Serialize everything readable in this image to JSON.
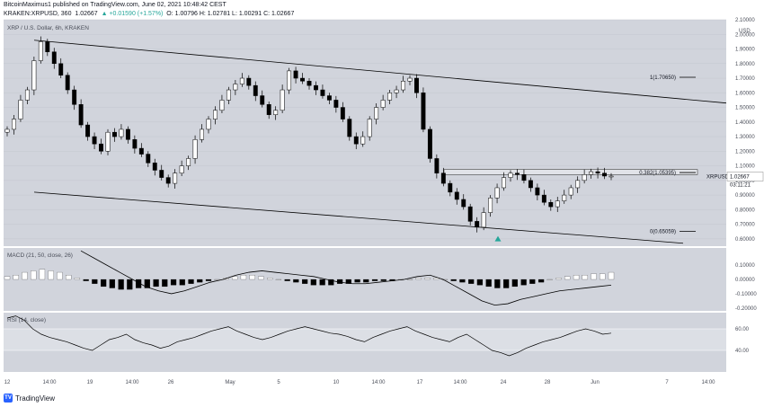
{
  "header": {
    "line1": "BitcoinMaximus1 published on TradingView.com, June 02, 2021 10:48:42 CEST",
    "symbol_line": "KRAKEN:XRPUSD, 360",
    "price": "1.02667",
    "change": "▲ +0.01590 (+1.57%)",
    "ohlc": "O: 1.00796 H: 1.02781 L: 1.00291 C: 1.02667"
  },
  "footer": {
    "brand": "TradingView",
    "icon": "tradingview-logo-icon"
  },
  "colors": {
    "pane_bg": "#d1d4dc",
    "candle_up": "#ffffff",
    "candle_down": "#000000",
    "axis_text": "#4a4e59",
    "marker": "#26a69a"
  },
  "chart_data": [
    {
      "type": "candlestick",
      "title": "XRP / U.S. Dollar, 6h, KRAKEN",
      "symbol": "XRPUSD",
      "timeframe": "6h",
      "exchange": "KRAKEN",
      "ylabel": "USD",
      "ylim": [
        0.55,
        2.1
      ],
      "y_ticks": [
        2.1,
        2.0,
        1.9,
        1.8,
        1.7,
        1.6,
        1.5,
        1.4,
        1.3,
        1.2,
        1.1,
        1.0,
        0.9,
        0.8,
        0.7,
        0.6
      ],
      "y_tick_labels": [
        "2.10000",
        "2.00000",
        "1.90000",
        "1.80000",
        "1.70000",
        "1.60000",
        "1.50000",
        "1.40000",
        "1.30000",
        "1.20000",
        "1.10000",
        "1.00000",
        "0.90000",
        "0.80000",
        "0.70000",
        "0.60000"
      ],
      "x_tick_labels": [
        "12",
        "14:00",
        "19",
        "14:00",
        "26",
        "May",
        "5",
        "10",
        "14:00",
        "17",
        "14:00",
        "24",
        "28",
        "Jun",
        "7",
        "14:00"
      ],
      "close_approx": [
        1.35,
        1.42,
        1.55,
        1.62,
        1.82,
        1.95,
        1.88,
        1.8,
        1.72,
        1.62,
        1.52,
        1.38,
        1.3,
        1.25,
        1.2,
        1.33,
        1.3,
        1.35,
        1.28,
        1.22,
        1.18,
        1.12,
        1.07,
        1.02,
        0.98,
        1.05,
        1.1,
        1.15,
        1.28,
        1.35,
        1.42,
        1.48,
        1.55,
        1.62,
        1.66,
        1.7,
        1.65,
        1.58,
        1.52,
        1.45,
        1.48,
        1.62,
        1.75,
        1.7,
        1.68,
        1.65,
        1.62,
        1.58,
        1.55,
        1.5,
        1.42,
        1.3,
        1.25,
        1.3,
        1.42,
        1.5,
        1.55,
        1.6,
        1.62,
        1.68,
        1.7,
        1.6,
        1.35,
        1.15,
        1.05,
        0.98,
        0.92,
        0.87,
        0.82,
        0.72,
        0.68,
        0.78,
        0.88,
        0.95,
        1.02,
        1.05,
        1.04,
        1.0,
        0.95,
        0.9,
        0.85,
        0.82,
        0.86,
        0.9,
        0.95,
        1.0,
        1.04,
        1.06,
        1.05,
        1.03,
        1.03
      ],
      "current_price": 1.02667,
      "current_price_label": "1.02667",
      "countdown_label": "03:11:21",
      "fib_levels": [
        {
          "label": "1(1.70650)",
          "value": 1.7065
        },
        {
          "label": "0.382(1.05395)",
          "value": 1.05395
        },
        {
          "label": "0(0.65059)",
          "value": 0.65059
        }
      ],
      "channel_upper": {
        "start_value": 1.96,
        "end_value": 1.53
      },
      "channel_lower": {
        "start_value": 0.92,
        "end_value": 0.57
      },
      "resistance_zone": [
        1.04,
        1.075
      ],
      "low_marker_value": 0.62
    },
    {
      "type": "histogram+line",
      "title": "MACD (21, 50, close, 26)",
      "ylim": [
        -0.22,
        0.22
      ],
      "y_ticks": [
        0.1,
        0.0,
        -0.1,
        -0.2
      ],
      "y_tick_labels": [
        "0.10000",
        "0.00000",
        "-0.10000",
        "-0.20000"
      ],
      "histogram": [
        0.02,
        0.03,
        0.05,
        0.06,
        0.07,
        0.06,
        0.05,
        0.03,
        0.01,
        -0.01,
        -0.03,
        -0.05,
        -0.06,
        -0.07,
        -0.07,
        -0.06,
        -0.06,
        -0.05,
        -0.05,
        -0.04,
        -0.04,
        -0.03,
        -0.02,
        -0.01,
        0.0,
        0.01,
        0.02,
        0.03,
        0.03,
        0.02,
        0.01,
        0.0,
        -0.01,
        -0.02,
        -0.03,
        -0.04,
        -0.04,
        -0.04,
        -0.03,
        -0.03,
        -0.02,
        -0.02,
        -0.01,
        -0.01,
        -0.01,
        -0.0,
        0.0,
        0.01,
        0.01,
        0.01,
        0.0,
        -0.01,
        -0.02,
        -0.03,
        -0.04,
        -0.05,
        -0.06,
        -0.06,
        -0.05,
        -0.04,
        -0.03,
        -0.02,
        0.0,
        0.01,
        0.02,
        0.03,
        0.03,
        0.04,
        0.04,
        0.05
      ],
      "signal_line": [
        0.2,
        0.15,
        0.1,
        0.05,
        0.0,
        -0.05,
        -0.08,
        -0.1,
        -0.08,
        -0.05,
        -0.02,
        0.0,
        0.03,
        0.05,
        0.06,
        0.05,
        0.04,
        0.03,
        0.02,
        0.0,
        -0.02,
        -0.03,
        -0.03,
        -0.02,
        -0.01,
        0.0,
        0.02,
        0.03,
        0.0,
        -0.05,
        -0.1,
        -0.15,
        -0.18,
        -0.17,
        -0.14,
        -0.12,
        -0.1,
        -0.08,
        -0.07,
        -0.06,
        -0.05,
        -0.04
      ]
    },
    {
      "type": "line",
      "title": "RSI (14, close)",
      "ylim": [
        20,
        75
      ],
      "y_ticks": [
        60,
        40
      ],
      "y_tick_labels": [
        "60.00",
        "40.00"
      ],
      "band": [
        40,
        60
      ],
      "values": [
        70,
        72,
        68,
        60,
        55,
        52,
        50,
        48,
        45,
        42,
        40,
        45,
        50,
        52,
        55,
        50,
        47,
        45,
        42,
        44,
        48,
        50,
        52,
        55,
        58,
        60,
        62,
        58,
        55,
        52,
        50,
        52,
        55,
        58,
        60,
        62,
        60,
        58,
        56,
        55,
        53,
        50,
        48,
        52,
        55,
        58,
        60,
        62,
        58,
        55,
        52,
        50,
        48,
        52,
        55,
        50,
        45,
        40,
        38,
        35,
        38,
        42,
        45,
        48,
        50,
        52,
        55,
        58,
        60,
        58,
        55,
        56
      ]
    }
  ]
}
